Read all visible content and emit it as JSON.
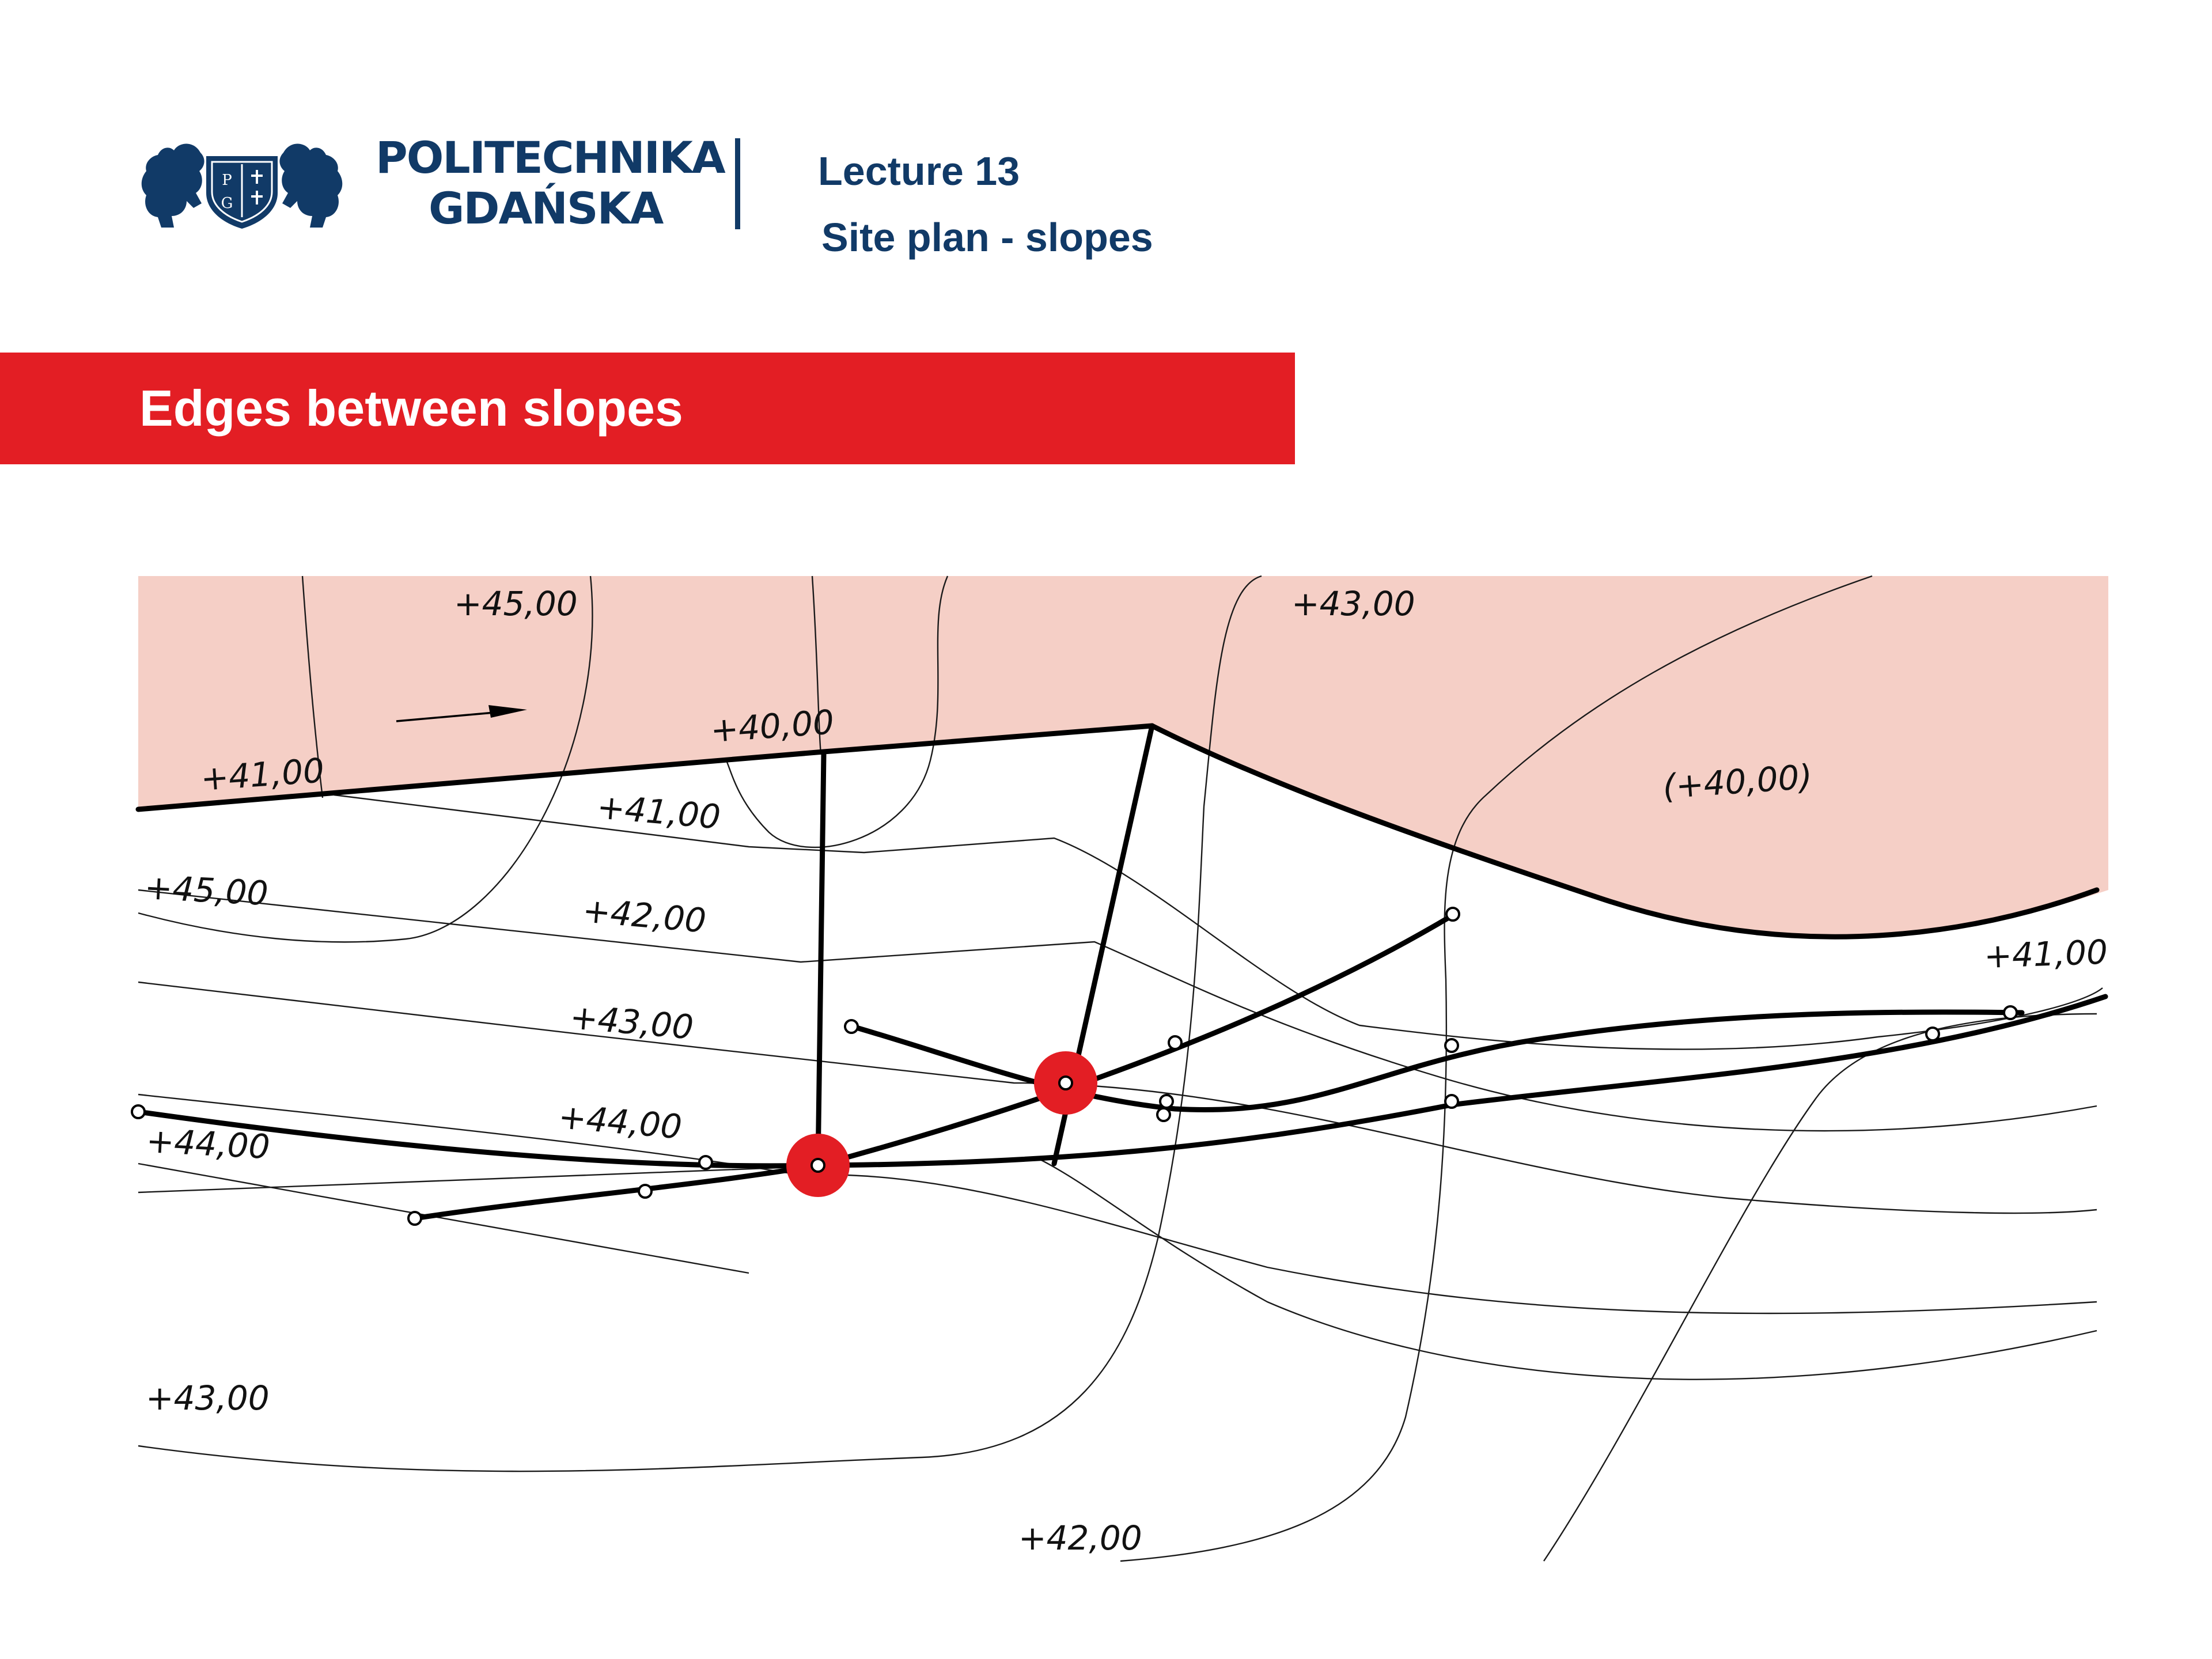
{
  "header": {
    "logo": {
      "icon": "politechnika-gdanska-crest-icon",
      "shield_letters": [
        "P",
        "G"
      ],
      "color": "#113a67"
    },
    "university_line1": "POLITECHNIKA",
    "university_line2": "GDAŃSKA",
    "lecture": "Lecture 13",
    "topic": "Site plan - slopes"
  },
  "banner": {
    "title": "Edges between slopes",
    "color": "#e31e24"
  },
  "diagram": {
    "platform_fill": "#f5cfc6",
    "highlight_color": "#e31e24",
    "arrow_icon": "slope-direction-arrow-icon",
    "labels": [
      "+45,00",
      "+43,00",
      "+40,00",
      "+41,00",
      "(+40,00)",
      "+41,00",
      "+45,00",
      "+42,00",
      "+41,00",
      "+43,00",
      "+44,00",
      "+44,00",
      "+43,00",
      "+42,00"
    ]
  }
}
